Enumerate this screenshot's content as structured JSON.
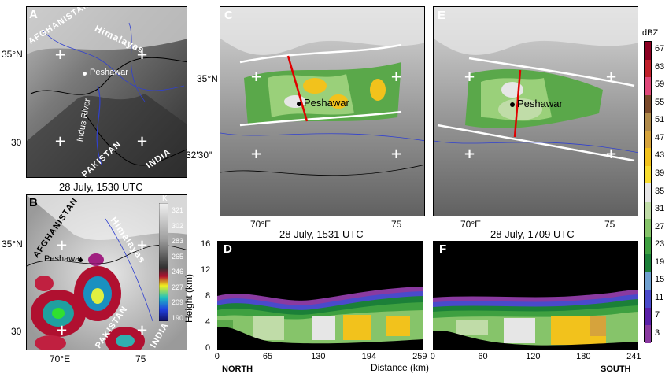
{
  "panels": {
    "A": {
      "label": "A",
      "lat_35": "35°N",
      "lat_30": "30",
      "caption": "28 July, 1530 UTC",
      "places": {
        "afghanistan": "AFGHANISTAN",
        "himalayas": "Himalayas",
        "peshawar": "Peshawar",
        "indus": "Indus River",
        "pakistan": "PAKISTAN",
        "india": "INDIA"
      }
    },
    "B": {
      "label": "B",
      "lat_35": "35°N",
      "lat_30": "30",
      "lon_70": "70°E",
      "lon_75": "75",
      "places": {
        "afghanistan": "AFGHANISTAN",
        "himalayas": "Himalayas",
        "peshawar": "Peshawar",
        "pakistan": "PAKISTAN",
        "india": "INDIA"
      },
      "colorbar_unit": "K",
      "colorbar_ticks": [
        "321",
        "302",
        "283",
        "265",
        "246",
        "227",
        "209",
        "190"
      ]
    },
    "C": {
      "label": "C",
      "lat_35": "35°N",
      "lat_3230": "32'30\"",
      "lon_70": "70°E",
      "lon_75": "75",
      "caption": "28 July, 1531 UTC",
      "peshawar": "Peshawar"
    },
    "E": {
      "label": "E",
      "lon_70": "70°E",
      "lon_75": "75",
      "caption": "28 July, 1709 UTC",
      "peshawar": "Peshawar"
    },
    "D": {
      "label": "D",
      "ylabel": "Height (km)",
      "yticks": [
        "16",
        "12",
        "8",
        "4",
        "0"
      ],
      "xticks": [
        "0",
        "65",
        "130",
        "194",
        "259"
      ],
      "left_end": "NORTH",
      "xlabel": "Distance (km)"
    },
    "F": {
      "label": "F",
      "xticks": [
        "0",
        "60",
        "120",
        "180",
        "241"
      ],
      "right_end": "SOUTH"
    }
  },
  "dbz_colorbar": {
    "unit": "dBZ",
    "ticks": [
      "67",
      "63",
      "59",
      "55",
      "51",
      "47",
      "43",
      "39",
      "35",
      "31",
      "27",
      "23",
      "19",
      "15",
      "11",
      "7",
      "3"
    ],
    "colors": [
      "#8b0022",
      "#c0202a",
      "#e0487a",
      "#7a4a2a",
      "#b08a4a",
      "#d6a33c",
      "#f2c21c",
      "#f8dd30",
      "#e6e6e6",
      "#c0dca8",
      "#86c46a",
      "#3ea040",
      "#1b8038",
      "#6fa0d0",
      "#4a4acb",
      "#5a20a8",
      "#8a3aa0"
    ]
  }
}
